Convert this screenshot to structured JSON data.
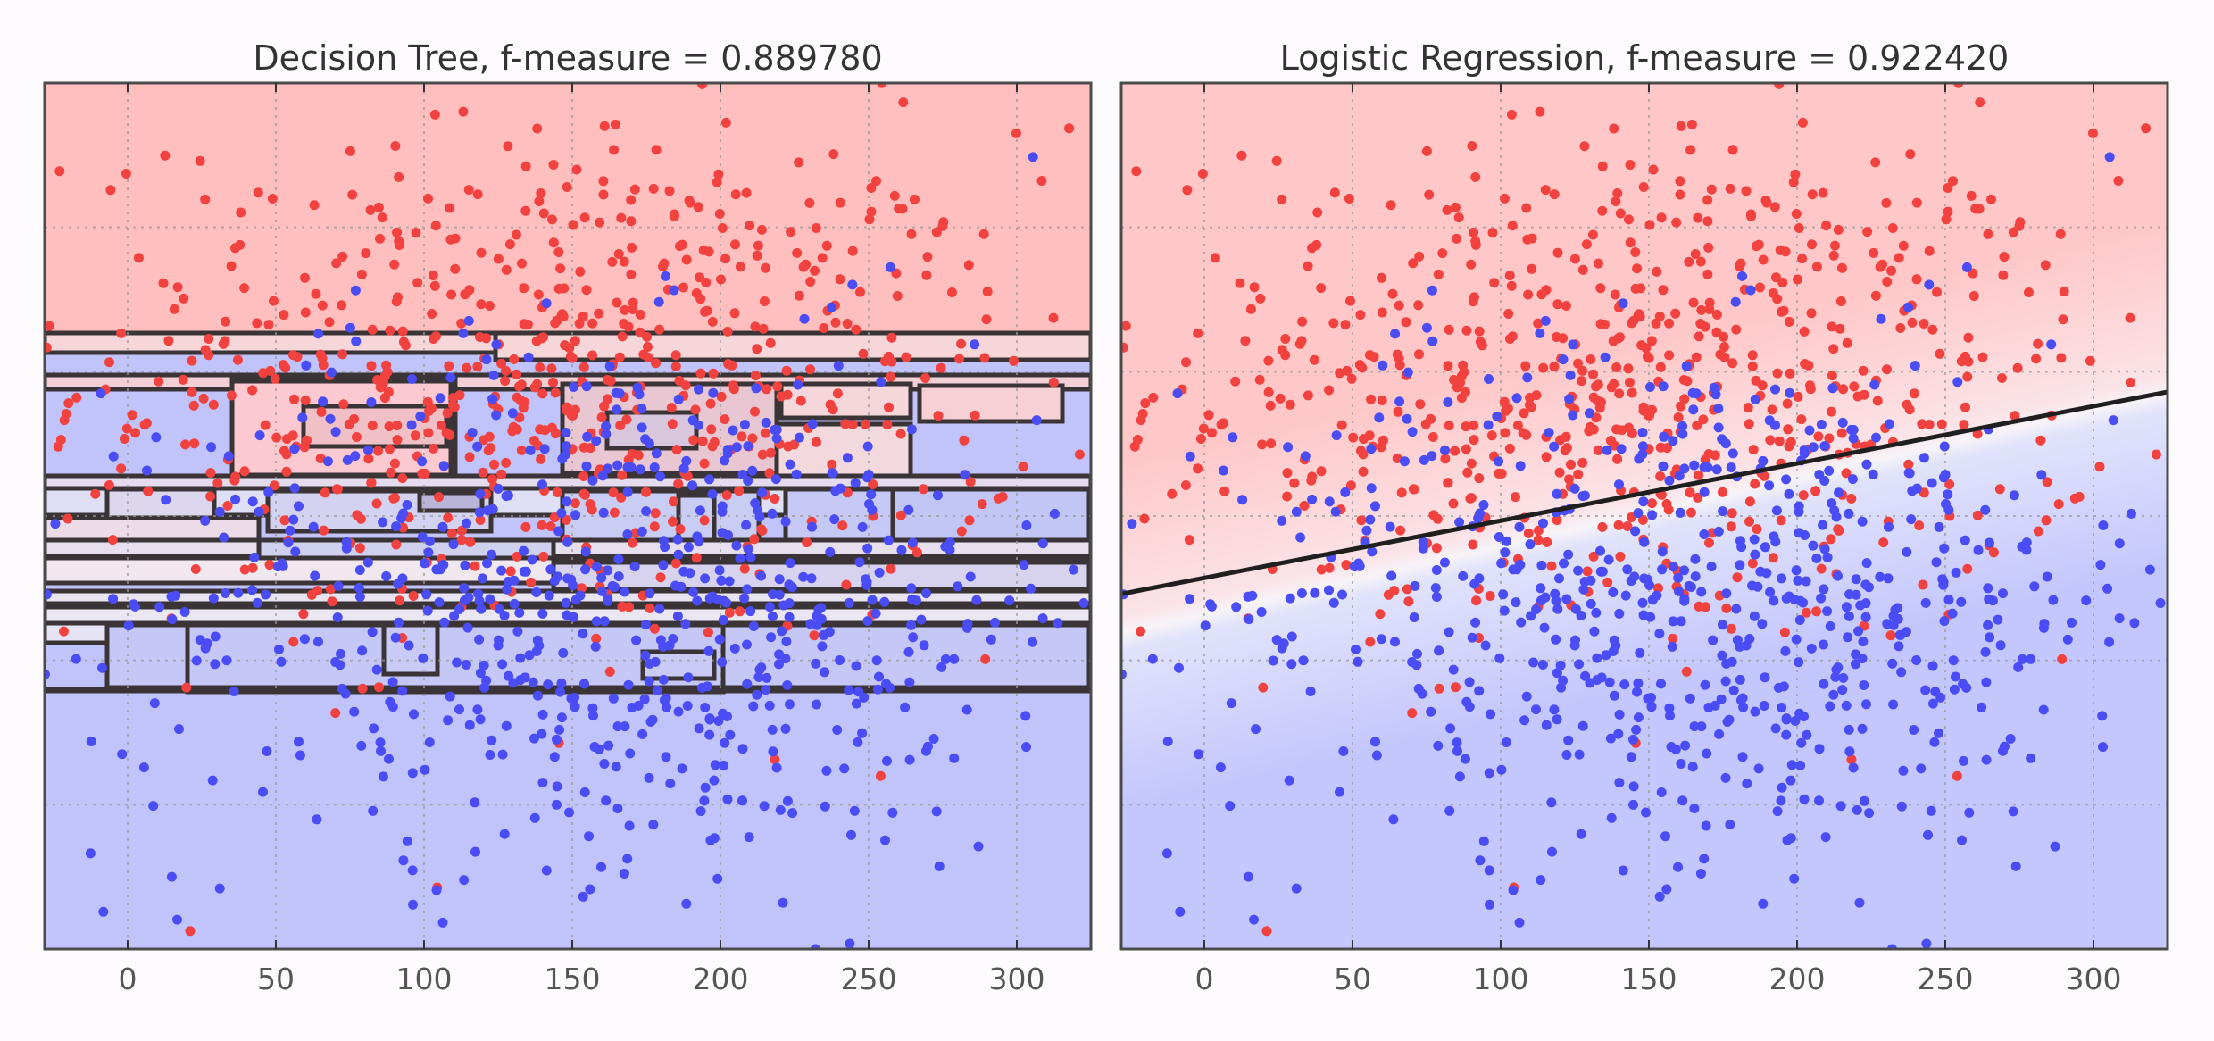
{
  "chart_data": [
    {
      "type": "scatter",
      "title": "Decision Tree, f-measure = 0.889780",
      "xlabel": "",
      "ylabel": "",
      "xlim": [
        -28,
        325
      ],
      "x_ticks": [
        "0",
        "50",
        "100",
        "150",
        "200",
        "250",
        "300"
      ],
      "x_tick_values": [
        0,
        50,
        100,
        150,
        200,
        250,
        300
      ],
      "ylim": [
        0,
        300
      ],
      "grid": true,
      "background": "axis-aligned decision regions (red class above, blue class below)",
      "series": [
        {
          "color": "#f2423f",
          "cluster": {
            "x_mean": 145,
            "x_sd": 80,
            "y_mean": 195,
            "y_sd": 45,
            "count": 700
          }
        },
        {
          "color": "#4a4df5",
          "cluster": {
            "x_mean": 165,
            "x_sd": 85,
            "y_mean": 120,
            "y_sd": 45,
            "count": 700
          }
        }
      ]
    },
    {
      "type": "scatter",
      "title": "Logistic Regression, f-measure = 0.922420",
      "xlabel": "",
      "ylabel": "",
      "xlim": [
        -28,
        325
      ],
      "x_ticks": [
        "0",
        "50",
        "100",
        "150",
        "200",
        "250",
        "300"
      ],
      "x_tick_values": [
        0,
        50,
        100,
        150,
        200,
        250,
        300
      ],
      "ylim": [
        0,
        300
      ],
      "grid": true,
      "background": "smooth red-to-blue probability gradient with linear decision boundary",
      "decision_boundary": {
        "x": [
          -28,
          325
        ],
        "y": [
          123,
          193
        ]
      },
      "series": [
        {
          "color": "#f2423f",
          "cluster": {
            "x_mean": 145,
            "x_sd": 80,
            "y_mean": 195,
            "y_sd": 45,
            "count": 700
          }
        },
        {
          "color": "#4a4df5",
          "cluster": {
            "x_mean": 165,
            "x_sd": 85,
            "y_mean": 120,
            "y_sd": 45,
            "count": 700
          }
        }
      ]
    }
  ]
}
